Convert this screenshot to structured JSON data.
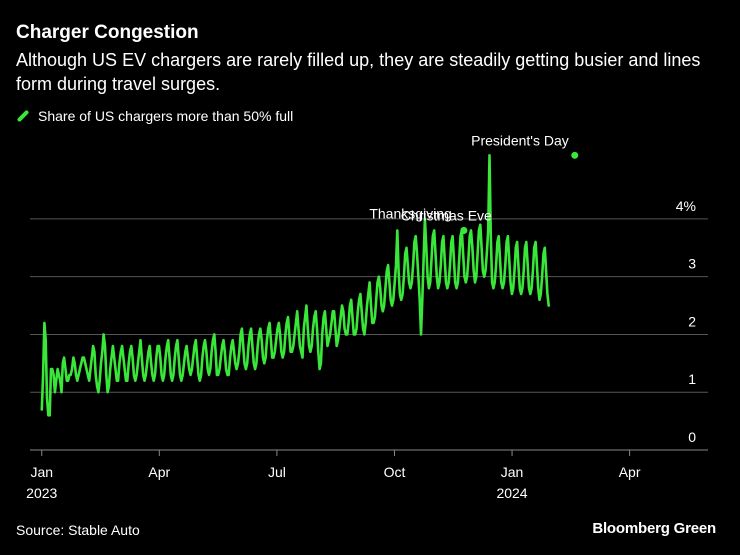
{
  "header": {
    "title": "Charger Congestion",
    "subtitle": "Although US EV chargers are rarely filled up, they are steadily getting busier and lines form during travel surges."
  },
  "footer": {
    "source": "Source: Stable Auto",
    "brand": "Bloomberg Green"
  },
  "colors": {
    "background": "#000000",
    "series": "#39e639",
    "grid": "#555555",
    "text": "#ffffff"
  },
  "chart_data": {
    "type": "line",
    "title": "Charger Congestion",
    "legend": [
      "Share of US chargers more than 50% full"
    ],
    "legend_position": "top-left",
    "x_axis": {
      "ticks": [
        {
          "value": 0,
          "label": "Jan",
          "sublabel": "2023"
        },
        {
          "value": 3,
          "label": "Apr",
          "sublabel": ""
        },
        {
          "value": 6,
          "label": "Jul",
          "sublabel": ""
        },
        {
          "value": 9,
          "label": "Oct",
          "sublabel": ""
        },
        {
          "value": 12,
          "label": "Jan",
          "sublabel": "2024"
        },
        {
          "value": 15,
          "label": "Apr",
          "sublabel": ""
        }
      ],
      "range": [
        -0.3,
        17.0
      ],
      "unit": "months since Jan 2023"
    },
    "y_axis": {
      "range": [
        0,
        4.5
      ],
      "ticks": [
        {
          "value": 0,
          "label": "0"
        },
        {
          "value": 1,
          "label": "1"
        },
        {
          "value": 2,
          "label": "2"
        },
        {
          "value": 3,
          "label": "3"
        },
        {
          "value": 4,
          "label": "4%"
        }
      ],
      "grid": true,
      "position": "right"
    },
    "annotations": [
      {
        "label": "Thanksgiving",
        "x": 10.77,
        "y": 3.8
      },
      {
        "label": "Christmas Eve",
        "x": 10.77,
        "y": 3.8
      },
      {
        "label": "President's Day",
        "x": 13.6,
        "y": 5.1
      }
    ],
    "series": [
      {
        "name": "Share of US chargers more than 50% full",
        "x_start": 0.0,
        "x_step": 0.0336,
        "values": [
          0.7,
          1.3,
          2.2,
          1.9,
          0.9,
          0.6,
          0.6,
          1.4,
          1.4,
          1.3,
          1.0,
          1.2,
          1.4,
          1.3,
          1.2,
          1.0,
          1.5,
          1.6,
          1.4,
          1.2,
          1.2,
          1.3,
          1.3,
          1.4,
          1.6,
          1.5,
          1.3,
          1.2,
          1.3,
          1.4,
          1.5,
          1.6,
          1.6,
          1.5,
          1.4,
          1.3,
          1.2,
          1.4,
          1.6,
          1.8,
          1.7,
          1.3,
          1.1,
          1.0,
          1.2,
          1.5,
          1.7,
          2.0,
          1.8,
          1.3,
          1.0,
          1.1,
          1.4,
          1.6,
          1.8,
          1.6,
          1.4,
          1.2,
          1.2,
          1.5,
          1.7,
          1.8,
          1.6,
          1.4,
          1.2,
          1.2,
          1.5,
          1.7,
          1.8,
          1.6,
          1.3,
          1.2,
          1.3,
          1.5,
          1.7,
          1.9,
          1.6,
          1.3,
          1.2,
          1.3,
          1.5,
          1.7,
          1.8,
          1.5,
          1.3,
          1.2,
          1.3,
          1.6,
          1.8,
          1.8,
          1.6,
          1.3,
          1.2,
          1.3,
          1.6,
          1.8,
          1.9,
          1.6,
          1.3,
          1.2,
          1.3,
          1.6,
          1.8,
          1.9,
          1.6,
          1.3,
          1.2,
          1.3,
          1.5,
          1.7,
          1.8,
          1.6,
          1.4,
          1.3,
          1.4,
          1.6,
          1.8,
          1.9,
          1.6,
          1.3,
          1.2,
          1.3,
          1.6,
          1.8,
          1.9,
          1.7,
          1.4,
          1.3,
          1.4,
          1.7,
          1.9,
          2.0,
          1.7,
          1.3,
          1.3,
          1.4,
          1.6,
          1.8,
          1.9,
          1.7,
          1.4,
          1.3,
          1.3,
          1.6,
          1.8,
          1.9,
          1.7,
          1.5,
          1.4,
          1.5,
          1.7,
          2.0,
          2.1,
          1.8,
          1.5,
          1.4,
          1.5,
          1.8,
          2.0,
          2.1,
          1.8,
          1.5,
          1.4,
          1.5,
          1.8,
          2.0,
          2.1,
          1.9,
          1.6,
          1.5,
          1.6,
          1.9,
          2.1,
          2.2,
          1.9,
          1.6,
          1.6,
          1.7,
          1.9,
          2.1,
          2.2,
          2.0,
          1.7,
          1.6,
          1.7,
          2.0,
          2.2,
          2.3,
          2.0,
          1.7,
          1.7,
          1.8,
          2.0,
          2.2,
          2.4,
          2.1,
          1.8,
          1.7,
          1.6,
          2.1,
          2.3,
          2.5,
          2.1,
          1.8,
          1.7,
          1.8,
          2.1,
          2.3,
          2.4,
          2.1,
          1.7,
          1.4,
          1.5,
          2.0,
          2.3,
          2.4,
          2.1,
          1.8,
          1.9,
          2.0,
          2.2,
          2.4,
          2.4,
          2.1,
          1.8,
          1.9,
          2.1,
          2.3,
          2.5,
          2.4,
          2.1,
          2.0,
          2.0,
          2.2,
          2.5,
          2.6,
          2.3,
          2.0,
          2.0,
          2.1,
          2.4,
          2.6,
          2.7,
          2.4,
          2.1,
          2.0,
          2.2,
          2.5,
          2.7,
          2.9,
          2.5,
          2.2,
          2.2,
          2.3,
          2.6,
          2.9,
          3.0,
          2.8,
          2.5,
          2.4,
          2.5,
          2.8,
          3.1,
          3.2,
          2.9,
          2.6,
          2.5,
          2.6,
          2.9,
          3.2,
          3.8,
          3.1,
          2.7,
          2.6,
          2.7,
          3.0,
          3.4,
          3.5,
          3.2,
          2.9,
          2.8,
          2.9,
          3.2,
          3.6,
          3.7,
          3.4,
          3.0,
          2.6,
          2.0,
          2.6,
          3.3,
          4.0,
          3.5,
          3.0,
          2.8,
          2.9,
          3.3,
          3.7,
          3.8,
          3.4,
          3.0,
          2.8,
          2.9,
          3.2,
          3.6,
          3.7,
          3.3,
          2.9,
          2.8,
          2.9,
          3.2,
          3.6,
          3.7,
          3.3,
          2.9,
          2.8,
          2.9,
          3.3,
          3.7,
          3.8,
          3.4,
          3.0,
          2.9,
          3.0,
          3.3,
          3.7,
          3.8,
          3.5,
          3.1,
          2.9,
          3.0,
          3.4,
          3.8,
          3.9,
          3.5,
          3.1,
          3.0,
          3.1,
          3.4,
          3.8,
          5.1,
          3.7,
          2.9,
          2.8,
          2.9,
          3.2,
          3.6,
          3.7,
          3.3,
          2.9,
          2.8,
          2.9,
          3.2,
          3.6,
          3.7,
          3.3,
          2.9,
          2.7,
          2.8,
          3.1,
          3.5,
          3.6,
          3.2,
          2.8,
          2.7,
          2.8,
          3.1,
          3.5,
          3.6,
          3.2,
          2.8,
          2.7,
          2.8,
          3.1,
          3.5,
          3.6,
          3.2,
          2.8,
          2.6,
          2.7,
          3.0,
          3.4,
          3.5,
          3.1,
          2.7,
          2.5
        ]
      }
    ]
  }
}
